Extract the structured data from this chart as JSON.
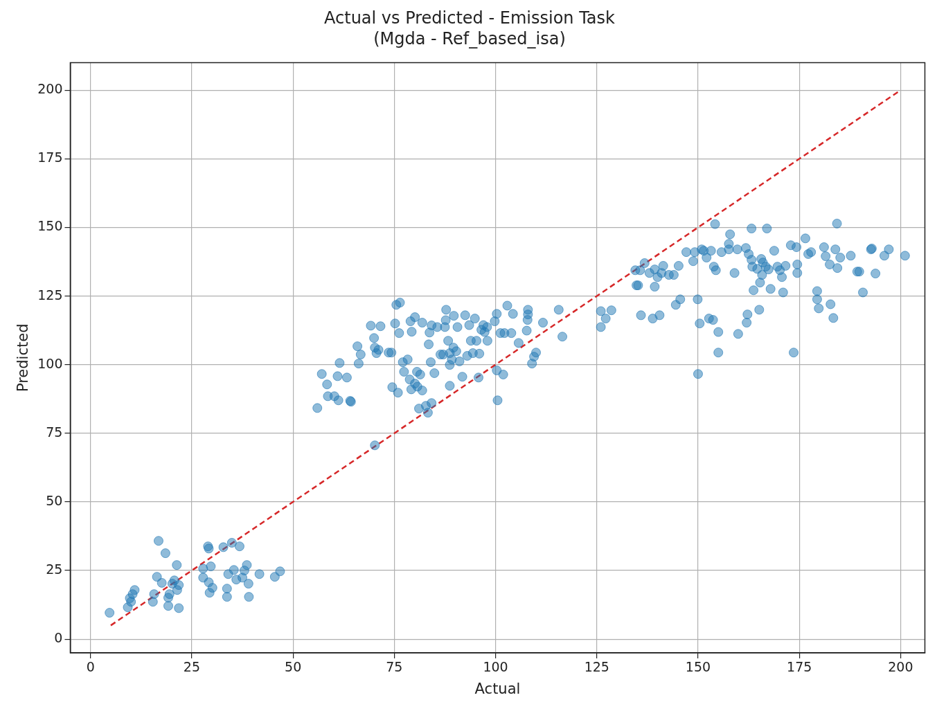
{
  "chart_data": {
    "type": "scatter",
    "title": "Actual vs Predicted - Emission Task",
    "subtitle": "(Mgda - Ref_based_isa)",
    "xlabel": "Actual",
    "ylabel": "Predicted",
    "xlim": [
      -5,
      206
    ],
    "ylim": [
      -5,
      210
    ],
    "xticks": [
      0,
      25,
      50,
      75,
      100,
      125,
      150,
      175,
      200
    ],
    "yticks": [
      0,
      25,
      50,
      75,
      100,
      125,
      150,
      175,
      200
    ],
    "grid": true,
    "legend": false,
    "series": [
      {
        "type": "scatter",
        "color": "#1f77b4",
        "marker": "circle",
        "x": [
          4.7,
          9.2,
          9.7,
          10.4,
          10.9,
          10,
          15.4,
          15.7,
          16.4,
          16.8,
          18.5,
          17.6,
          19.2,
          19.2,
          19.5,
          20.2,
          20.7,
          21.3,
          21.4,
          21.8,
          21.8,
          27.8,
          27.8,
          29,
          29.2,
          29.2,
          29.4,
          29.7,
          30.1,
          32.8,
          33.7,
          33.7,
          34,
          34.9,
          35.4,
          36,
          36.8,
          37.5,
          38,
          38.6,
          39,
          39.1,
          41.7,
          45.5,
          46.8,
          56,
          57.1,
          58.4,
          58.6,
          60.2,
          61.2,
          61.5,
          61,
          63.3,
          64.1,
          64.3,
          65.9,
          66.2,
          66.7,
          69.2,
          70,
          70.2,
          70.6,
          71.1,
          71.6,
          70.2,
          73.6,
          74.3,
          74.5,
          75.2,
          75.5,
          76.4,
          75.9,
          76.2,
          77.1,
          77.4,
          78.3,
          78.8,
          79.2,
          79.3,
          79,
          80.1,
          80.1,
          80.6,
          81.1,
          80.7,
          81.4,
          81.9,
          81.9,
          83.5,
          83.7,
          82.8,
          83.3,
          84.2,
          84,
          84.2,
          84.9,
          85.6,
          86.4,
          87.1,
          87.5,
          87.8,
          87.7,
          88.3,
          88.7,
          88.7,
          88.7,
          89.2,
          89.6,
          89.7,
          90.3,
          90.6,
          91.1,
          91.8,
          92.5,
          93,
          93.5,
          93.9,
          94.4,
          94.9,
          95.3,
          96,
          95.8,
          96.5,
          97,
          97.3,
          97.9,
          98,
          99.8,
          100.3,
          100.3,
          100.5,
          101.2,
          101.9,
          102.2,
          102.9,
          103.9,
          104.3,
          105.7,
          107.7,
          108,
          108,
          107.9,
          109,
          109.5,
          110,
          111.7,
          115.6,
          116.5,
          126,
          126,
          127.2,
          128.6,
          134.5,
          134.8,
          135.2,
          135.7,
          135.9,
          136.8,
          138,
          138.8,
          139.3,
          139.3,
          140,
          140.5,
          141.4,
          141,
          142.8,
          144,
          144.5,
          145.2,
          145.6,
          147.1,
          148.8,
          149.2,
          149.9,
          150,
          150.4,
          150.9,
          151.4,
          152.1,
          152.7,
          153.2,
          153.7,
          153.9,
          154.2,
          154.4,
          155,
          155,
          155.8,
          157.6,
          157.6,
          157.9,
          159,
          159.7,
          159.9,
          161.8,
          162,
          162.2,
          162.5,
          163.2,
          163.2,
          163.4,
          163.7,
          164.6,
          165.1,
          165.3,
          165.6,
          165.8,
          166,
          166.7,
          167,
          167.4,
          167.9,
          168.8,
          169.6,
          170.2,
          170.7,
          171,
          171.6,
          172.9,
          173.6,
          174.5,
          174.5,
          174.3,
          176.5,
          177.2,
          177.9,
          179.4,
          179.4,
          179.8,
          181.1,
          181.5,
          182.5,
          182.7,
          183.4,
          183.9,
          184.3,
          184.4,
          185.1,
          187.7,
          189.3,
          189.8,
          190.7,
          192.7,
          192.9,
          193.8,
          196,
          197.1,
          201.1
        ],
        "values": [
          9.6,
          11.6,
          14.9,
          16.4,
          17.9,
          13.6,
          13.6,
          16.4,
          22.7,
          35.8,
          31.3,
          20.5,
          12.1,
          15.1,
          16.4,
          20.2,
          21.4,
          27,
          17.9,
          11.3,
          19.7,
          25.7,
          22.4,
          33.8,
          33,
          20.7,
          16.9,
          26.5,
          18.7,
          33.5,
          15.4,
          18.4,
          23.7,
          35.1,
          25.2,
          21.7,
          33.8,
          22.4,
          25,
          27,
          20.2,
          15.4,
          23.7,
          22.7,
          24.7,
          84.2,
          96.6,
          92.8,
          88.5,
          88.5,
          87,
          100.6,
          95.8,
          95.3,
          86.8,
          86.5,
          106.7,
          100.4,
          103.7,
          114.2,
          109.7,
          106.2,
          104.2,
          105.4,
          114,
          70.6,
          104.4,
          104.4,
          91.8,
          115,
          121.8,
          122.6,
          89.8,
          111.5,
          100.9,
          97.4,
          101.9,
          94.6,
          91,
          112,
          115.8,
          117.3,
          93.1,
          97.4,
          84,
          92,
          96.4,
          90.6,
          115.3,
          107.4,
          111.7,
          85,
          82.5,
          86,
          100.9,
          114.3,
          96.9,
          113.7,
          103.7,
          103.7,
          113.7,
          120,
          116.2,
          108.7,
          92.3,
          99.9,
          104.2,
          101.9,
          106.2,
          117.8,
          104.9,
          113.7,
          101.2,
          95.6,
          118,
          103.2,
          114.4,
          108.7,
          104.2,
          116.8,
          108.7,
          104,
          95.3,
          112.7,
          114.4,
          111.9,
          113.7,
          108.7,
          115.8,
          118.5,
          97.9,
          87,
          111.5,
          96.4,
          111.5,
          121.5,
          111.5,
          118.5,
          107.9,
          112.4,
          120,
          118.3,
          116.3,
          100.4,
          102.9,
          104.4,
          115.3,
          120,
          110.2,
          113.7,
          119.5,
          116.8,
          119.8,
          134.4,
          128.9,
          128.9,
          134.4,
          118,
          137,
          133.4,
          116.8,
          128.4,
          134.7,
          131.9,
          118,
          136,
          133.4,
          132.7,
          132.7,
          121.8,
          136,
          123.8,
          141,
          137.7,
          141,
          123.8,
          96.6,
          115,
          142,
          141.5,
          139,
          116.8,
          141.5,
          116.3,
          135.7,
          151.2,
          134.4,
          111.9,
          104.4,
          141,
          144,
          142,
          147.5,
          133.4,
          142,
          111.2,
          142.5,
          115.3,
          118.3,
          140.3,
          149.6,
          138.2,
          135.7,
          127.1,
          134.9,
          120,
          129.9,
          138.5,
          132.7,
          137.2,
          135.7,
          149.6,
          134.7,
          127.6,
          141.5,
          135.7,
          134.4,
          131.9,
          126.3,
          136,
          143.5,
          104.4,
          133.4,
          136.5,
          142.8,
          146,
          140.3,
          141,
          126.8,
          123.8,
          120.5,
          142.8,
          139.5,
          136.5,
          122,
          117,
          142,
          151.4,
          135.2,
          139,
          139.7,
          133.9,
          133.9,
          126.3,
          142,
          142.3,
          133.2,
          139.7,
          142,
          139.7
        ]
      },
      {
        "type": "line",
        "color": "#d62728",
        "marker": "none",
        "line_style": "dashed",
        "x": [
          5,
          200
        ],
        "values": [
          5,
          200
        ]
      }
    ]
  }
}
